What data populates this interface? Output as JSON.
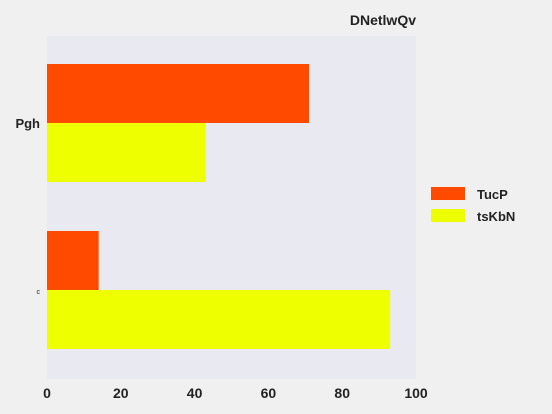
{
  "chart_data": {
    "type": "bar",
    "orientation": "horizontal",
    "title": "DNetlwQv",
    "xlabel": "",
    "ylabel": "",
    "categories": [
      "Pgh",
      "c"
    ],
    "series": [
      {
        "name": "TucP",
        "color": "#ff4a00",
        "values": [
          71,
          14
        ]
      },
      {
        "name": "tsKbN",
        "color": "#eeff00",
        "values": [
          43,
          93
        ]
      }
    ],
    "xlim": [
      0,
      100
    ],
    "xticks": [
      0,
      20,
      40,
      60,
      80,
      100
    ],
    "grid": false,
    "legend_position": "right",
    "plot_background": "#e9e9f1"
  }
}
